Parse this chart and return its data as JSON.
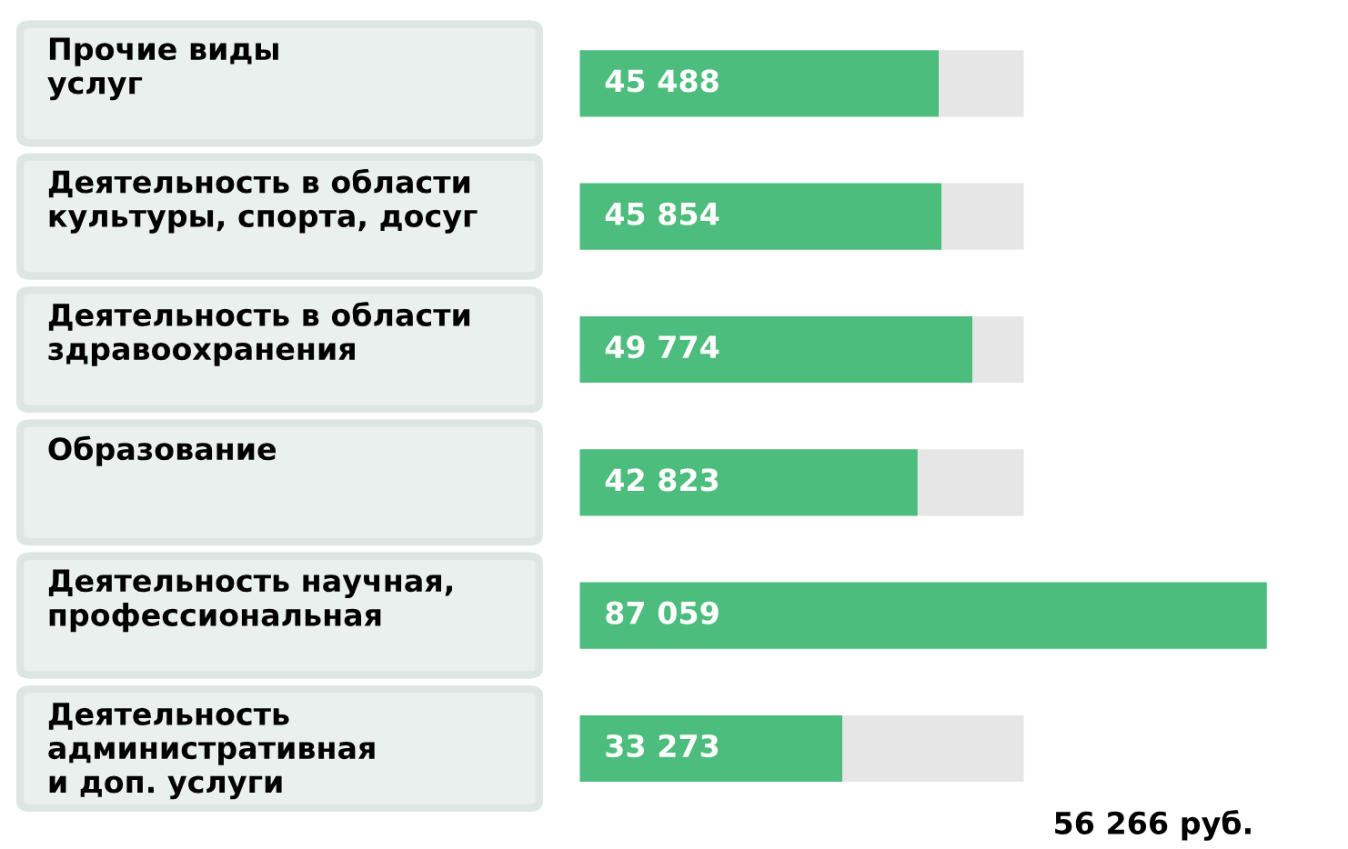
{
  "chart_data": {
    "type": "bar",
    "orientation": "horizontal",
    "categories": [
      "Прочие виды\nуслуг",
      "Деятельность в области\nкультуры, спорта, досуг",
      "Деятельность в области\nздравоохранения",
      "Образование",
      "Деятельность научная,\nпрофессиональная",
      "Деятельность\nадминистративная\nи доп. услуги"
    ],
    "stacked": true,
    "series": [
      {
        "color": "#4cbd7c",
        "values": [
          45488,
          45854,
          49774,
          42823,
          87059,
          33273
        ],
        "value_labels": [
          "45 488",
          "45 854",
          "49 774",
          "42 823",
          "87 059",
          "33 273"
        ]
      },
      {
        "color": "#e6e6e6",
        "values": [
          10778,
          10412,
          6492,
          13443,
          null,
          22993
        ]
      }
    ],
    "annotations": [
      "56 266 руб."
    ]
  }
}
